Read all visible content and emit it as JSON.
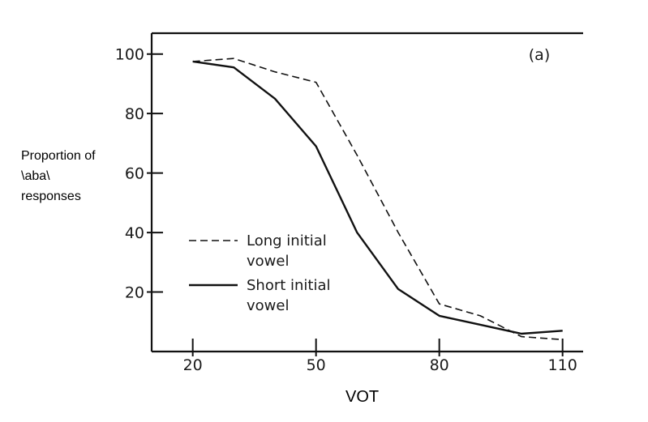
{
  "chart_data": {
    "type": "line",
    "panel_label": "(a)",
    "ylabel_lines": [
      "Proportion of",
      "\\aba\\",
      "responses"
    ],
    "xlabel": "VOT",
    "x_ticks": [
      20,
      50,
      80,
      110
    ],
    "x_tick_labels": [
      "20",
      "50",
      "80",
      "110"
    ],
    "y_ticks": [
      20,
      40,
      60,
      80,
      100
    ],
    "y_tick_labels": [
      "20",
      "40",
      "60",
      "80",
      "100"
    ],
    "xlim": [
      10,
      115
    ],
    "ylim": [
      0,
      107
    ],
    "grid": false,
    "legend_position": "lower-left",
    "series": [
      {
        "name": "Long initial vowel",
        "legend_lines": [
          "Long initial",
          "vowel"
        ],
        "style": "dashed",
        "points": [
          [
            20,
            97.5
          ],
          [
            30,
            98.5
          ],
          [
            40,
            94
          ],
          [
            50,
            90.5
          ],
          [
            60,
            66
          ],
          [
            70,
            40
          ],
          [
            80,
            16
          ],
          [
            90,
            12
          ],
          [
            100,
            5
          ],
          [
            110,
            4
          ]
        ]
      },
      {
        "name": "Short initial vowel",
        "legend_lines": [
          "Short initial",
          "vowel"
        ],
        "style": "solid",
        "points": [
          [
            20,
            97.5
          ],
          [
            30,
            95.5
          ],
          [
            40,
            85
          ],
          [
            50,
            69
          ],
          [
            60,
            40
          ],
          [
            70,
            21
          ],
          [
            80,
            12
          ],
          [
            90,
            9
          ],
          [
            100,
            6
          ],
          [
            110,
            7
          ]
        ]
      }
    ]
  }
}
